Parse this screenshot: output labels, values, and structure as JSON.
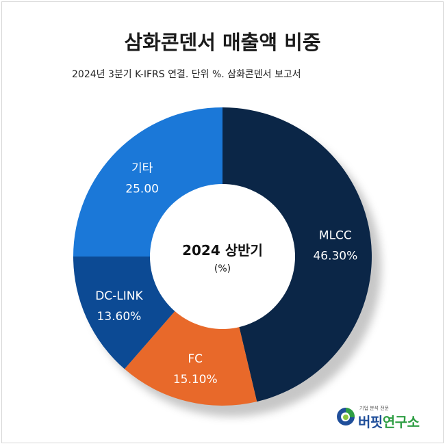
{
  "title": "삼화콘덴서 매출액 비중",
  "subtitle": "2024년 3분기 K-IFRS 연결. 단위 %. 삼화콘덴서 보고서",
  "center": {
    "line1": "2024 상반기",
    "line2": "(%)"
  },
  "logo": {
    "tagline": "기업 분석 전문",
    "name_part1": "버핏",
    "name_part2": "연구소"
  },
  "chart_data": {
    "type": "pie",
    "variant": "donut",
    "title": "삼화콘덴서 매출액 비중",
    "subtitle": "2024년 3분기 K-IFRS 연결. 단위 %. 삼화콘덴서 보고서",
    "slices": [
      {
        "label": "MLCC",
        "value": 46.3,
        "display": "46.30%",
        "color": "#0b2647"
      },
      {
        "label": "FC",
        "value": 15.1,
        "display": "15.10%",
        "color": "#e8692a"
      },
      {
        "label": "DC-LINK",
        "value": 13.6,
        "display": "13.60%",
        "color": "#0c4a94"
      },
      {
        "label": "기타",
        "value": 25.0,
        "display": "25.00",
        "color": "#1b78d8"
      }
    ]
  }
}
